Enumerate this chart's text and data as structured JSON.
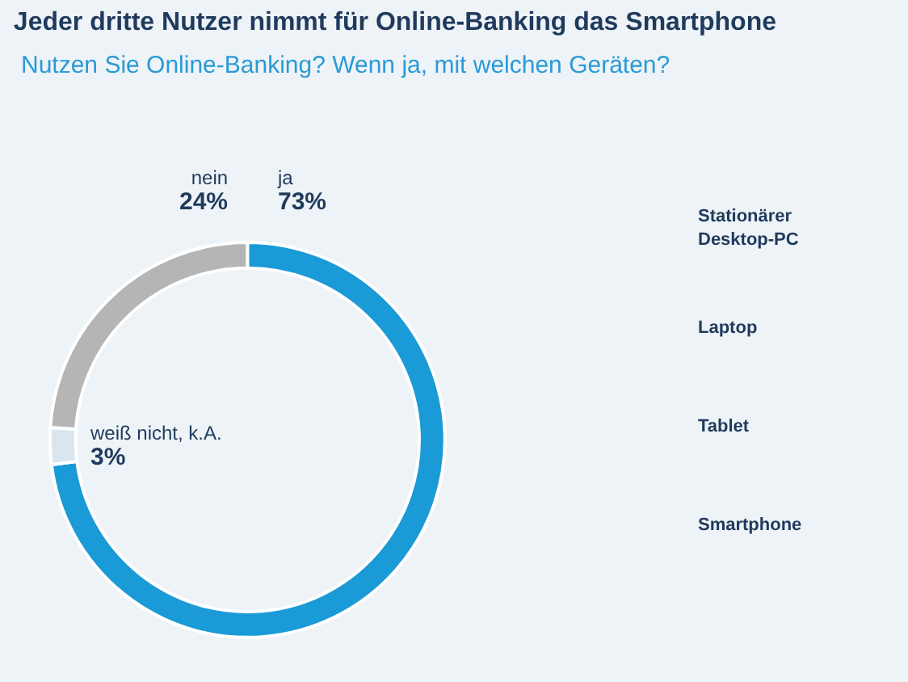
{
  "chart_data": {
    "type": "donut",
    "title": "Jeder dritte Nutzer nimmt für Online-Banking das Smartphone",
    "subtitle": "Nutzen Sie Online-Banking? Wenn ja, mit welchen Geräten?",
    "categories": [
      "ja",
      "weiß nicht, k.A.",
      "nein"
    ],
    "values": [
      73,
      3,
      24
    ],
    "value_labels": [
      "73%",
      "3%",
      "24%"
    ],
    "colors": [
      "#1a9ad6",
      "#d9e6ef",
      "#b5b5b5"
    ],
    "annotations": [
      "Stationärer Desktop-PC",
      "Laptop",
      "Tablet",
      "Smartphone"
    ],
    "legend": false
  }
}
